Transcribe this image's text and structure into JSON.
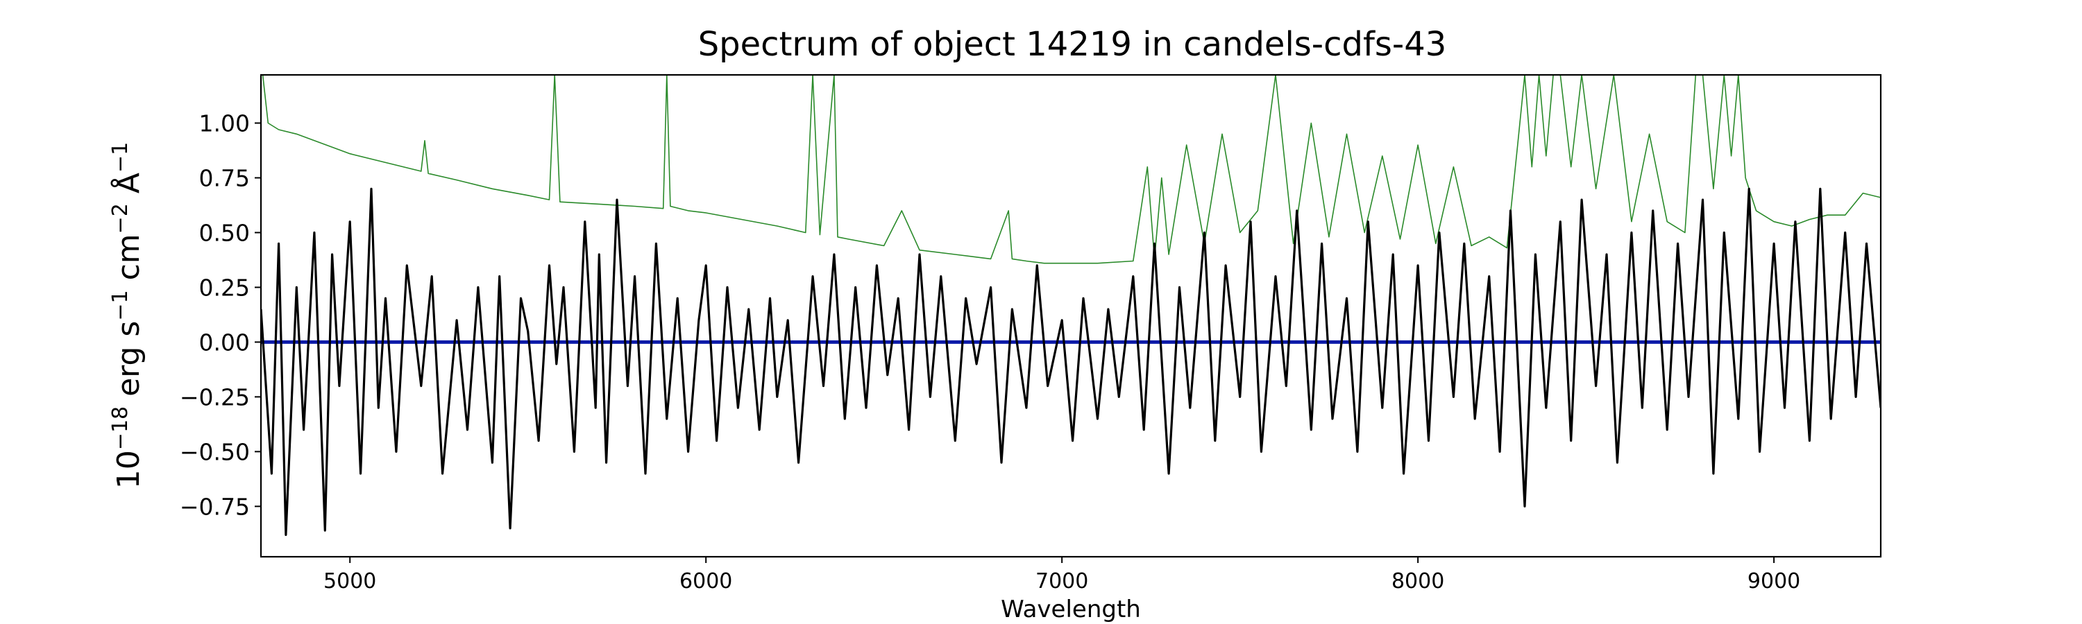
{
  "chart_data": {
    "type": "line",
    "title": "Spectrum of object 14219 in candels-cdfs-43",
    "xlabel": "Wavelength",
    "ylabel": {
      "base": "10",
      "exp": "−18",
      "unit1": " erg s",
      "unit1_exp": "−1",
      "unit2": " cm",
      "unit2_exp": "−2",
      "unit3": " Å",
      "unit3_exp": "−1"
    },
    "xlim": [
      4750,
      9300
    ],
    "ylim": [
      -0.98,
      1.22
    ],
    "xticks": [
      5000,
      6000,
      7000,
      8000,
      9000
    ],
    "xtick_labels": [
      "5000",
      "6000",
      "7000",
      "8000",
      "9000"
    ],
    "yticks": [
      -0.75,
      -0.5,
      -0.25,
      0.0,
      0.25,
      0.5,
      0.75,
      1.0
    ],
    "ytick_labels": [
      "−0.75",
      "−0.50",
      "−0.25",
      "0.00",
      "0.25",
      "0.50",
      "0.75",
      "1.00"
    ],
    "grid": false,
    "series": [
      {
        "role": "sky-noise",
        "color": "#2a8a2a",
        "style": "thin",
        "x": [
          4755,
          4770,
          4800,
          4850,
          4900,
          4950,
          5000,
          5100,
          5200,
          5210,
          5220,
          5300,
          5400,
          5500,
          5560,
          5575,
          5590,
          5700,
          5800,
          5880,
          5890,
          5900,
          5950,
          6000,
          6100,
          6200,
          6280,
          6300,
          6320,
          6360,
          6370,
          6400,
          6500,
          6550,
          6600,
          6700,
          6800,
          6850,
          6860,
          6900,
          6950,
          7000,
          7100,
          7200,
          7240,
          7260,
          7280,
          7300,
          7350,
          7400,
          7450,
          7500,
          7550,
          7600,
          7650,
          7700,
          7750,
          7800,
          7850,
          7900,
          7950,
          8000,
          8050,
          8100,
          8150,
          8200,
          8250,
          8280,
          8300,
          8320,
          8340,
          8360,
          8380,
          8400,
          8430,
          8460,
          8500,
          8550,
          8600,
          8650,
          8700,
          8750,
          8780,
          8800,
          8830,
          8860,
          8880,
          8900,
          8920,
          8950,
          9000,
          9050,
          9100,
          9150,
          9200,
          9250,
          9300
        ],
        "y": [
          1.25,
          1.0,
          0.97,
          0.95,
          0.92,
          0.89,
          0.86,
          0.82,
          0.78,
          0.92,
          0.77,
          0.74,
          0.7,
          0.67,
          0.65,
          1.22,
          0.64,
          0.63,
          0.62,
          0.61,
          1.22,
          0.62,
          0.6,
          0.59,
          0.56,
          0.53,
          0.5,
          1.22,
          0.49,
          1.22,
          0.48,
          0.47,
          0.44,
          0.6,
          0.42,
          0.4,
          0.38,
          0.6,
          0.38,
          0.37,
          0.36,
          0.36,
          0.36,
          0.37,
          0.8,
          0.38,
          0.75,
          0.4,
          0.9,
          0.45,
          0.95,
          0.5,
          0.6,
          1.22,
          0.45,
          1.0,
          0.48,
          0.95,
          0.5,
          0.85,
          0.47,
          0.9,
          0.45,
          0.8,
          0.44,
          0.48,
          0.43,
          0.9,
          1.22,
          0.8,
          1.22,
          0.85,
          1.22,
          1.22,
          0.8,
          1.22,
          0.7,
          1.22,
          0.55,
          0.95,
          0.55,
          0.5,
          1.22,
          1.22,
          0.7,
          1.22,
          0.85,
          1.22,
          0.75,
          0.6,
          0.55,
          0.53,
          0.56,
          0.58,
          0.58,
          0.68,
          0.66
        ]
      },
      {
        "role": "model",
        "color": "#0a1aa8",
        "style": "thick",
        "x": [
          4750,
          9300
        ],
        "y": [
          0.0,
          0.0
        ]
      },
      {
        "role": "flux",
        "color": "#000000",
        "style": "medium",
        "x": [
          4750,
          4780,
          4800,
          4820,
          4850,
          4870,
          4900,
          4930,
          4950,
          4970,
          5000,
          5030,
          5060,
          5080,
          5100,
          5130,
          5160,
          5200,
          5230,
          5260,
          5300,
          5330,
          5360,
          5400,
          5420,
          5450,
          5480,
          5500,
          5530,
          5560,
          5580,
          5600,
          5630,
          5660,
          5690,
          5700,
          5720,
          5750,
          5780,
          5800,
          5830,
          5860,
          5890,
          5920,
          5950,
          5980,
          6000,
          6030,
          6060,
          6090,
          6120,
          6150,
          6180,
          6200,
          6230,
          6260,
          6300,
          6330,
          6360,
          6390,
          6420,
          6450,
          6480,
          6510,
          6540,
          6570,
          6600,
          6630,
          6660,
          6700,
          6730,
          6760,
          6800,
          6830,
          6860,
          6900,
          6930,
          6960,
          7000,
          7030,
          7060,
          7100,
          7130,
          7160,
          7200,
          7230,
          7260,
          7300,
          7330,
          7360,
          7400,
          7430,
          7460,
          7500,
          7530,
          7560,
          7600,
          7630,
          7660,
          7700,
          7730,
          7760,
          7800,
          7830,
          7860,
          7900,
          7930,
          7960,
          8000,
          8030,
          8060,
          8100,
          8130,
          8160,
          8200,
          8230,
          8260,
          8300,
          8330,
          8360,
          8400,
          8430,
          8460,
          8500,
          8530,
          8560,
          8600,
          8630,
          8660,
          8700,
          8730,
          8760,
          8800,
          8830,
          8860,
          8900,
          8930,
          8960,
          9000,
          9030,
          9060,
          9100,
          9130,
          9160,
          9200,
          9230,
          9260,
          9300
        ],
        "y": [
          0.15,
          -0.6,
          0.45,
          -0.88,
          0.25,
          -0.4,
          0.5,
          -0.86,
          0.4,
          -0.2,
          0.55,
          -0.6,
          0.7,
          -0.3,
          0.2,
          -0.5,
          0.35,
          -0.2,
          0.3,
          -0.6,
          0.1,
          -0.4,
          0.25,
          -0.55,
          0.3,
          -0.85,
          0.2,
          0.05,
          -0.45,
          0.35,
          -0.1,
          0.25,
          -0.5,
          0.55,
          -0.3,
          0.4,
          -0.55,
          0.65,
          -0.2,
          0.3,
          -0.6,
          0.45,
          -0.35,
          0.2,
          -0.5,
          0.1,
          0.35,
          -0.45,
          0.25,
          -0.3,
          0.15,
          -0.4,
          0.2,
          -0.25,
          0.1,
          -0.55,
          0.3,
          -0.2,
          0.4,
          -0.35,
          0.25,
          -0.3,
          0.35,
          -0.15,
          0.2,
          -0.4,
          0.4,
          -0.25,
          0.3,
          -0.45,
          0.2,
          -0.1,
          0.25,
          -0.55,
          0.15,
          -0.3,
          0.35,
          -0.2,
          0.1,
          -0.45,
          0.2,
          -0.35,
          0.15,
          -0.25,
          0.3,
          -0.4,
          0.45,
          -0.6,
          0.25,
          -0.3,
          0.5,
          -0.45,
          0.35,
          -0.25,
          0.55,
          -0.5,
          0.3,
          -0.2,
          0.6,
          -0.4,
          0.45,
          -0.35,
          0.2,
          -0.5,
          0.55,
          -0.3,
          0.4,
          -0.6,
          0.35,
          -0.45,
          0.5,
          -0.25,
          0.45,
          -0.35,
          0.3,
          -0.5,
          0.6,
          -0.75,
          0.4,
          -0.3,
          0.55,
          -0.45,
          0.65,
          -0.2,
          0.4,
          -0.55,
          0.5,
          -0.3,
          0.6,
          -0.4,
          0.45,
          -0.25,
          0.65,
          -0.6,
          0.5,
          -0.35,
          0.7,
          -0.5,
          0.45,
          -0.3,
          0.55,
          -0.45,
          0.7,
          -0.35,
          0.5,
          -0.25,
          0.45,
          -0.3
        ]
      }
    ]
  }
}
